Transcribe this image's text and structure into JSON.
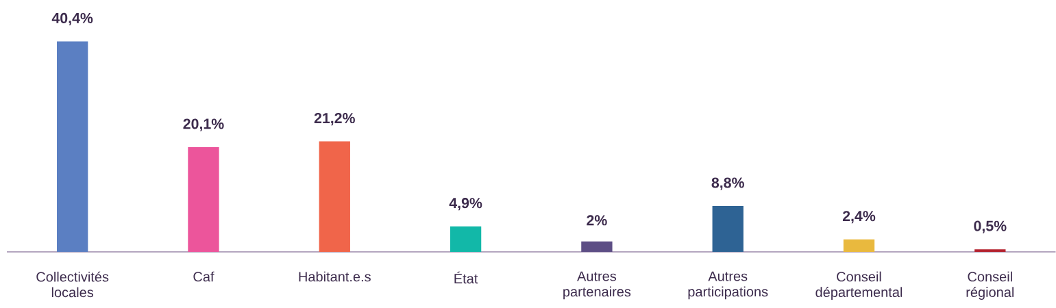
{
  "chart_data": {
    "type": "bar",
    "categories": [
      "Collectivités locales",
      "Caf",
      "Habitant.e.s",
      "État",
      "Autres partenaires",
      "Autres participations",
      "Conseil départemental",
      "Conseil régional"
    ],
    "values": [
      40.4,
      20.1,
      21.2,
      4.9,
      2,
      8.8,
      2.4,
      0.5
    ],
    "colors": [
      "#5b7fc2",
      "#ec559b",
      "#f0654a",
      "#12b8a8",
      "#5d4e85",
      "#2e6394",
      "#e9b93e",
      "#b4232f"
    ],
    "value_labels": [
      "40,4%",
      "20,1%",
      "21,2%",
      "4,9%",
      "2%",
      "8,8%",
      "2,4%",
      "0,5%"
    ]
  }
}
